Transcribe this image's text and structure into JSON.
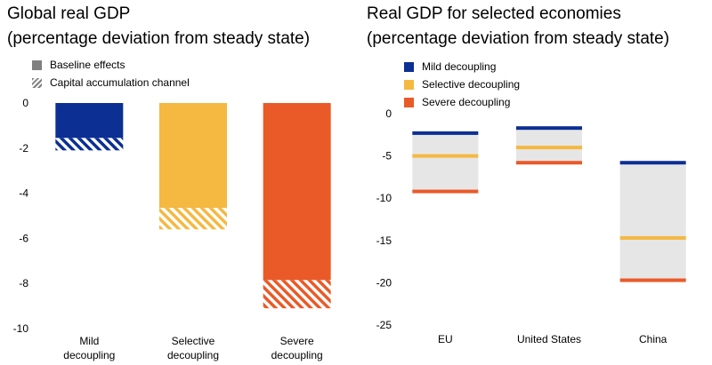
{
  "chart_data": [
    {
      "type": "bar",
      "title": "Global real GDP",
      "subtitle": "(percentage deviation from steady state)",
      "categories": [
        [
          "Mild",
          "decoupling"
        ],
        [
          "Selective",
          "decoupling"
        ],
        [
          "Severe",
          "decoupling"
        ]
      ],
      "category_colors": [
        "#0b2f93",
        "#f5b841",
        "#e95a28"
      ],
      "series": [
        {
          "name": "Baseline effects",
          "pattern": "solid",
          "values": [
            -1.55,
            -4.65,
            -7.85
          ]
        },
        {
          "name": "Capital accumulation channel",
          "pattern": "hatched",
          "values": [
            -0.55,
            -0.95,
            -1.25
          ]
        }
      ],
      "stacked": true,
      "ylim": [
        -10,
        0
      ],
      "yticks": [
        0,
        -2,
        -4,
        -6,
        -8,
        -10
      ],
      "legend_position": "top-left",
      "legend_swatch_colors": [
        "#808080",
        "#808080"
      ]
    },
    {
      "type": "range",
      "title": "Real GDP for selected economies",
      "subtitle": "(percentage deviation from steady state)",
      "categories": [
        "EU",
        "United States",
        "China"
      ],
      "range_fill": "#e6e6e6",
      "series": [
        {
          "name": "Mild decoupling",
          "color": "#0b2f93",
          "values": [
            -2.3,
            -1.7,
            -5.8
          ]
        },
        {
          "name": "Selective decoupling",
          "color": "#f5b841",
          "values": [
            -5.0,
            -4.0,
            -14.7
          ]
        },
        {
          "name": "Severe decoupling",
          "color": "#e95a28",
          "values": [
            -9.2,
            -5.8,
            -19.7
          ]
        }
      ],
      "ylim": [
        -25,
        0
      ],
      "yticks": [
        0,
        -5,
        -10,
        -15,
        -20,
        -25
      ],
      "legend_position": "top-left"
    }
  ]
}
